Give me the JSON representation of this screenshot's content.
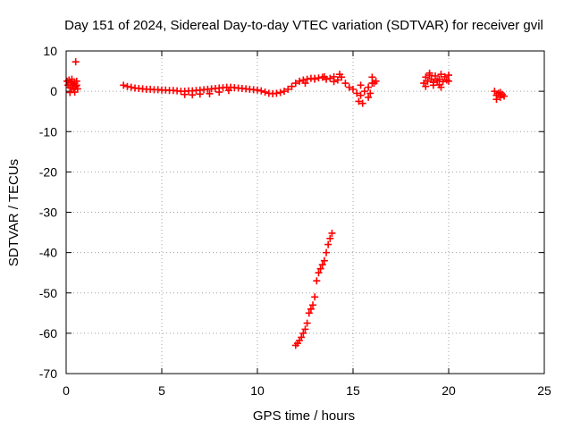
{
  "chart_data": {
    "type": "scatter",
    "title": "Day 151 of 2024, Sidereal Day-to-day VTEC variation (SDTVAR) for receiver gvil",
    "xlabel": "GPS time / hours",
    "ylabel": "SDTVAR / TECUs",
    "xlim": [
      0,
      25
    ],
    "ylim": [
      -70,
      10
    ],
    "xticks": [
      "0",
      "5",
      "10",
      "15",
      "20",
      "25"
    ],
    "yticks": [
      "10",
      "0",
      "-10",
      "-20",
      "-30",
      "-40",
      "-50",
      "-60",
      "-70"
    ],
    "grid": true,
    "marker": "plus",
    "color": "#ff0000",
    "series": [
      {
        "x": [
          0.05,
          0.1,
          0.15,
          0.2,
          0.25,
          0.3,
          0.35,
          0.4,
          0.45,
          0.5,
          0.55,
          0.6,
          0.2,
          0.3,
          0.45,
          0.55,
          0.5,
          3.0,
          3.2,
          3.4,
          3.6,
          3.8,
          4.0,
          4.2,
          4.4,
          4.6,
          4.8,
          5.0,
          5.2,
          5.4,
          5.6,
          5.8,
          6.0,
          6.2,
          6.4,
          6.6,
          6.8,
          7.0,
          7.2,
          7.4,
          7.6,
          7.8,
          8.0,
          8.2,
          8.4,
          8.6,
          8.8,
          9.0,
          9.2,
          9.4,
          9.6,
          9.8,
          10.0,
          10.2,
          10.4,
          10.6,
          10.8,
          11.0,
          11.2,
          11.4,
          11.6,
          11.8,
          12.0,
          12.2,
          12.4,
          12.6,
          12.8,
          13.0,
          13.2,
          13.4,
          13.6,
          13.8,
          14.0,
          14.2,
          14.4,
          14.6,
          14.8,
          15.0,
          15.2,
          15.4,
          15.6,
          15.8,
          16.0,
          16.2,
          6.2,
          6.6,
          7.0,
          7.5,
          8.0,
          8.5,
          12.5,
          13.0,
          13.5,
          14.0,
          14.3,
          15.3,
          15.5,
          15.8,
          16.0,
          16.1,
          15.9,
          15.4,
          18.7,
          18.8,
          18.9,
          19.0,
          19.1,
          19.2,
          19.3,
          19.4,
          19.5,
          19.6,
          19.7,
          19.8,
          19.9,
          20.0,
          18.8,
          19.2,
          19.6,
          20.0,
          19.0,
          19.5,
          22.4,
          22.5,
          22.6,
          22.7,
          22.8,
          22.9,
          22.5,
          22.7,
          12.0,
          12.1,
          12.2,
          12.3,
          12.4,
          12.5,
          12.6,
          12.7,
          12.8,
          12.9,
          13.0,
          13.1,
          13.2,
          13.3,
          13.4,
          13.5,
          13.6,
          13.7,
          13.8,
          13.9
        ],
        "y": [
          2.5,
          1.5,
          2.8,
          1.0,
          2.2,
          0.8,
          1.8,
          0.5,
          2.0,
          1.2,
          1.5,
          0.6,
          -0.3,
          3.0,
          -0.2,
          2.5,
          7.3,
          1.5,
          1.2,
          1.0,
          0.8,
          0.7,
          0.6,
          0.5,
          0.5,
          0.4,
          0.4,
          0.3,
          0.3,
          0.2,
          0.2,
          0.1,
          0.0,
          0.0,
          0.1,
          0.1,
          0.2,
          0.3,
          0.4,
          0.5,
          0.6,
          0.7,
          0.8,
          0.9,
          1.0,
          1.0,
          0.9,
          0.8,
          0.7,
          0.6,
          0.5,
          0.4,
          0.3,
          0.1,
          -0.2,
          -0.5,
          -0.6,
          -0.5,
          -0.3,
          0.0,
          0.5,
          1.2,
          2.0,
          2.5,
          2.8,
          3.0,
          3.2,
          3.0,
          3.3,
          3.5,
          3.0,
          3.2,
          3.6,
          2.8,
          3.5,
          2.0,
          1.0,
          0.5,
          -0.5,
          -1.0,
          0.0,
          1.0,
          2.0,
          2.5,
          -0.8,
          -0.9,
          -0.7,
          -0.6,
          -0.2,
          0.2,
          2.0,
          3.2,
          3.6,
          2.4,
          4.2,
          -2.5,
          -3.0,
          -1.5,
          3.5,
          2.0,
          -0.5,
          1.5,
          2.0,
          3.5,
          2.5,
          4.0,
          3.0,
          2.2,
          3.8,
          2.6,
          3.0,
          4.2,
          2.4,
          3.6,
          2.8,
          4.0,
          1.2,
          1.5,
          1.0,
          2.5,
          4.5,
          1.6,
          0.0,
          -1.0,
          -0.5,
          -1.5,
          -0.8,
          -1.2,
          -2.0,
          -0.3,
          -63.0,
          -62.5,
          -61.8,
          -61.0,
          -60.0,
          -59.0,
          -57.5,
          -55.0,
          -54.0,
          -53.0,
          -51.0,
          -47.0,
          -45.0,
          -44.0,
          -43.0,
          -42.0,
          -40.0,
          -38.0,
          -36.5,
          -35.2
        ]
      }
    ]
  }
}
